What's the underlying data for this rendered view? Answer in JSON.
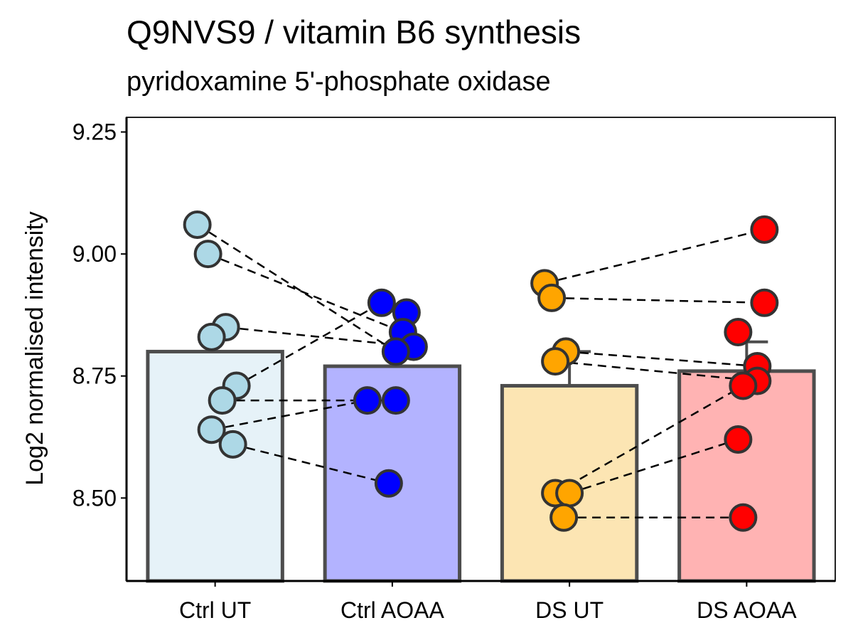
{
  "title": "Q9NVS9 / vitamin B6 synthesis",
  "subtitle": "pyridoxamine 5'-phosphate oxidase",
  "chart_data": {
    "type": "bar",
    "ylabel": "Log2 normalised intensity",
    "xlabel": "",
    "ylim": [
      8.33,
      9.28
    ],
    "yticks": [
      "8.50",
      "8.75",
      "9.00",
      "9.25"
    ],
    "categories": [
      "Ctrl UT",
      "Ctrl AOAA",
      "DS UT",
      "DS AOAA"
    ],
    "bar_fill_colors": [
      "#e6f2f8",
      "#b3b3ff",
      "#fce5b3",
      "#ffb3b3"
    ],
    "point_colors": [
      "#add8e6",
      "#0000ff",
      "#ffa500",
      "#ff0000"
    ],
    "means": [
      8.8,
      8.77,
      8.73,
      8.76
    ],
    "error_upper": [
      8.86,
      8.815,
      8.8,
      8.82
    ],
    "points": [
      [
        9.06,
        9.0,
        8.85,
        8.83,
        8.73,
        8.7,
        8.64,
        8.61
      ],
      [
        8.9,
        8.88,
        8.84,
        8.81,
        8.8,
        8.7,
        8.7,
        8.53
      ],
      [
        8.94,
        8.91,
        8.8,
        8.78,
        8.51,
        8.51,
        8.46
      ],
      [
        9.05,
        8.9,
        8.84,
        8.77,
        8.74,
        8.73,
        8.62,
        8.46
      ]
    ],
    "pairs": [
      {
        "from": [
          0,
          0
        ],
        "to": [
          1,
          4
        ]
      },
      {
        "from": [
          0,
          1
        ],
        "to": [
          1,
          2
        ]
      },
      {
        "from": [
          0,
          2
        ],
        "to": [
          1,
          3
        ]
      },
      {
        "from": [
          0,
          4
        ],
        "to": [
          1,
          0
        ]
      },
      {
        "from": [
          0,
          5
        ],
        "to": [
          1,
          6
        ]
      },
      {
        "from": [
          0,
          6
        ],
        "to": [
          1,
          5
        ]
      },
      {
        "from": [
          0,
          7
        ],
        "to": [
          1,
          7
        ]
      },
      {
        "from": [
          2,
          0
        ],
        "to": [
          3,
          0
        ]
      },
      {
        "from": [
          2,
          1
        ],
        "to": [
          3,
          1
        ]
      },
      {
        "from": [
          2,
          2
        ],
        "to": [
          3,
          3
        ]
      },
      {
        "from": [
          2,
          3
        ],
        "to": [
          3,
          4
        ]
      },
      {
        "from": [
          2,
          4
        ],
        "to": [
          3,
          5
        ]
      },
      {
        "from": [
          2,
          5
        ],
        "to": [
          3,
          6
        ]
      },
      {
        "from": [
          2,
          6
        ],
        "to": [
          3,
          7
        ]
      }
    ],
    "grid": false,
    "legend": "none"
  }
}
